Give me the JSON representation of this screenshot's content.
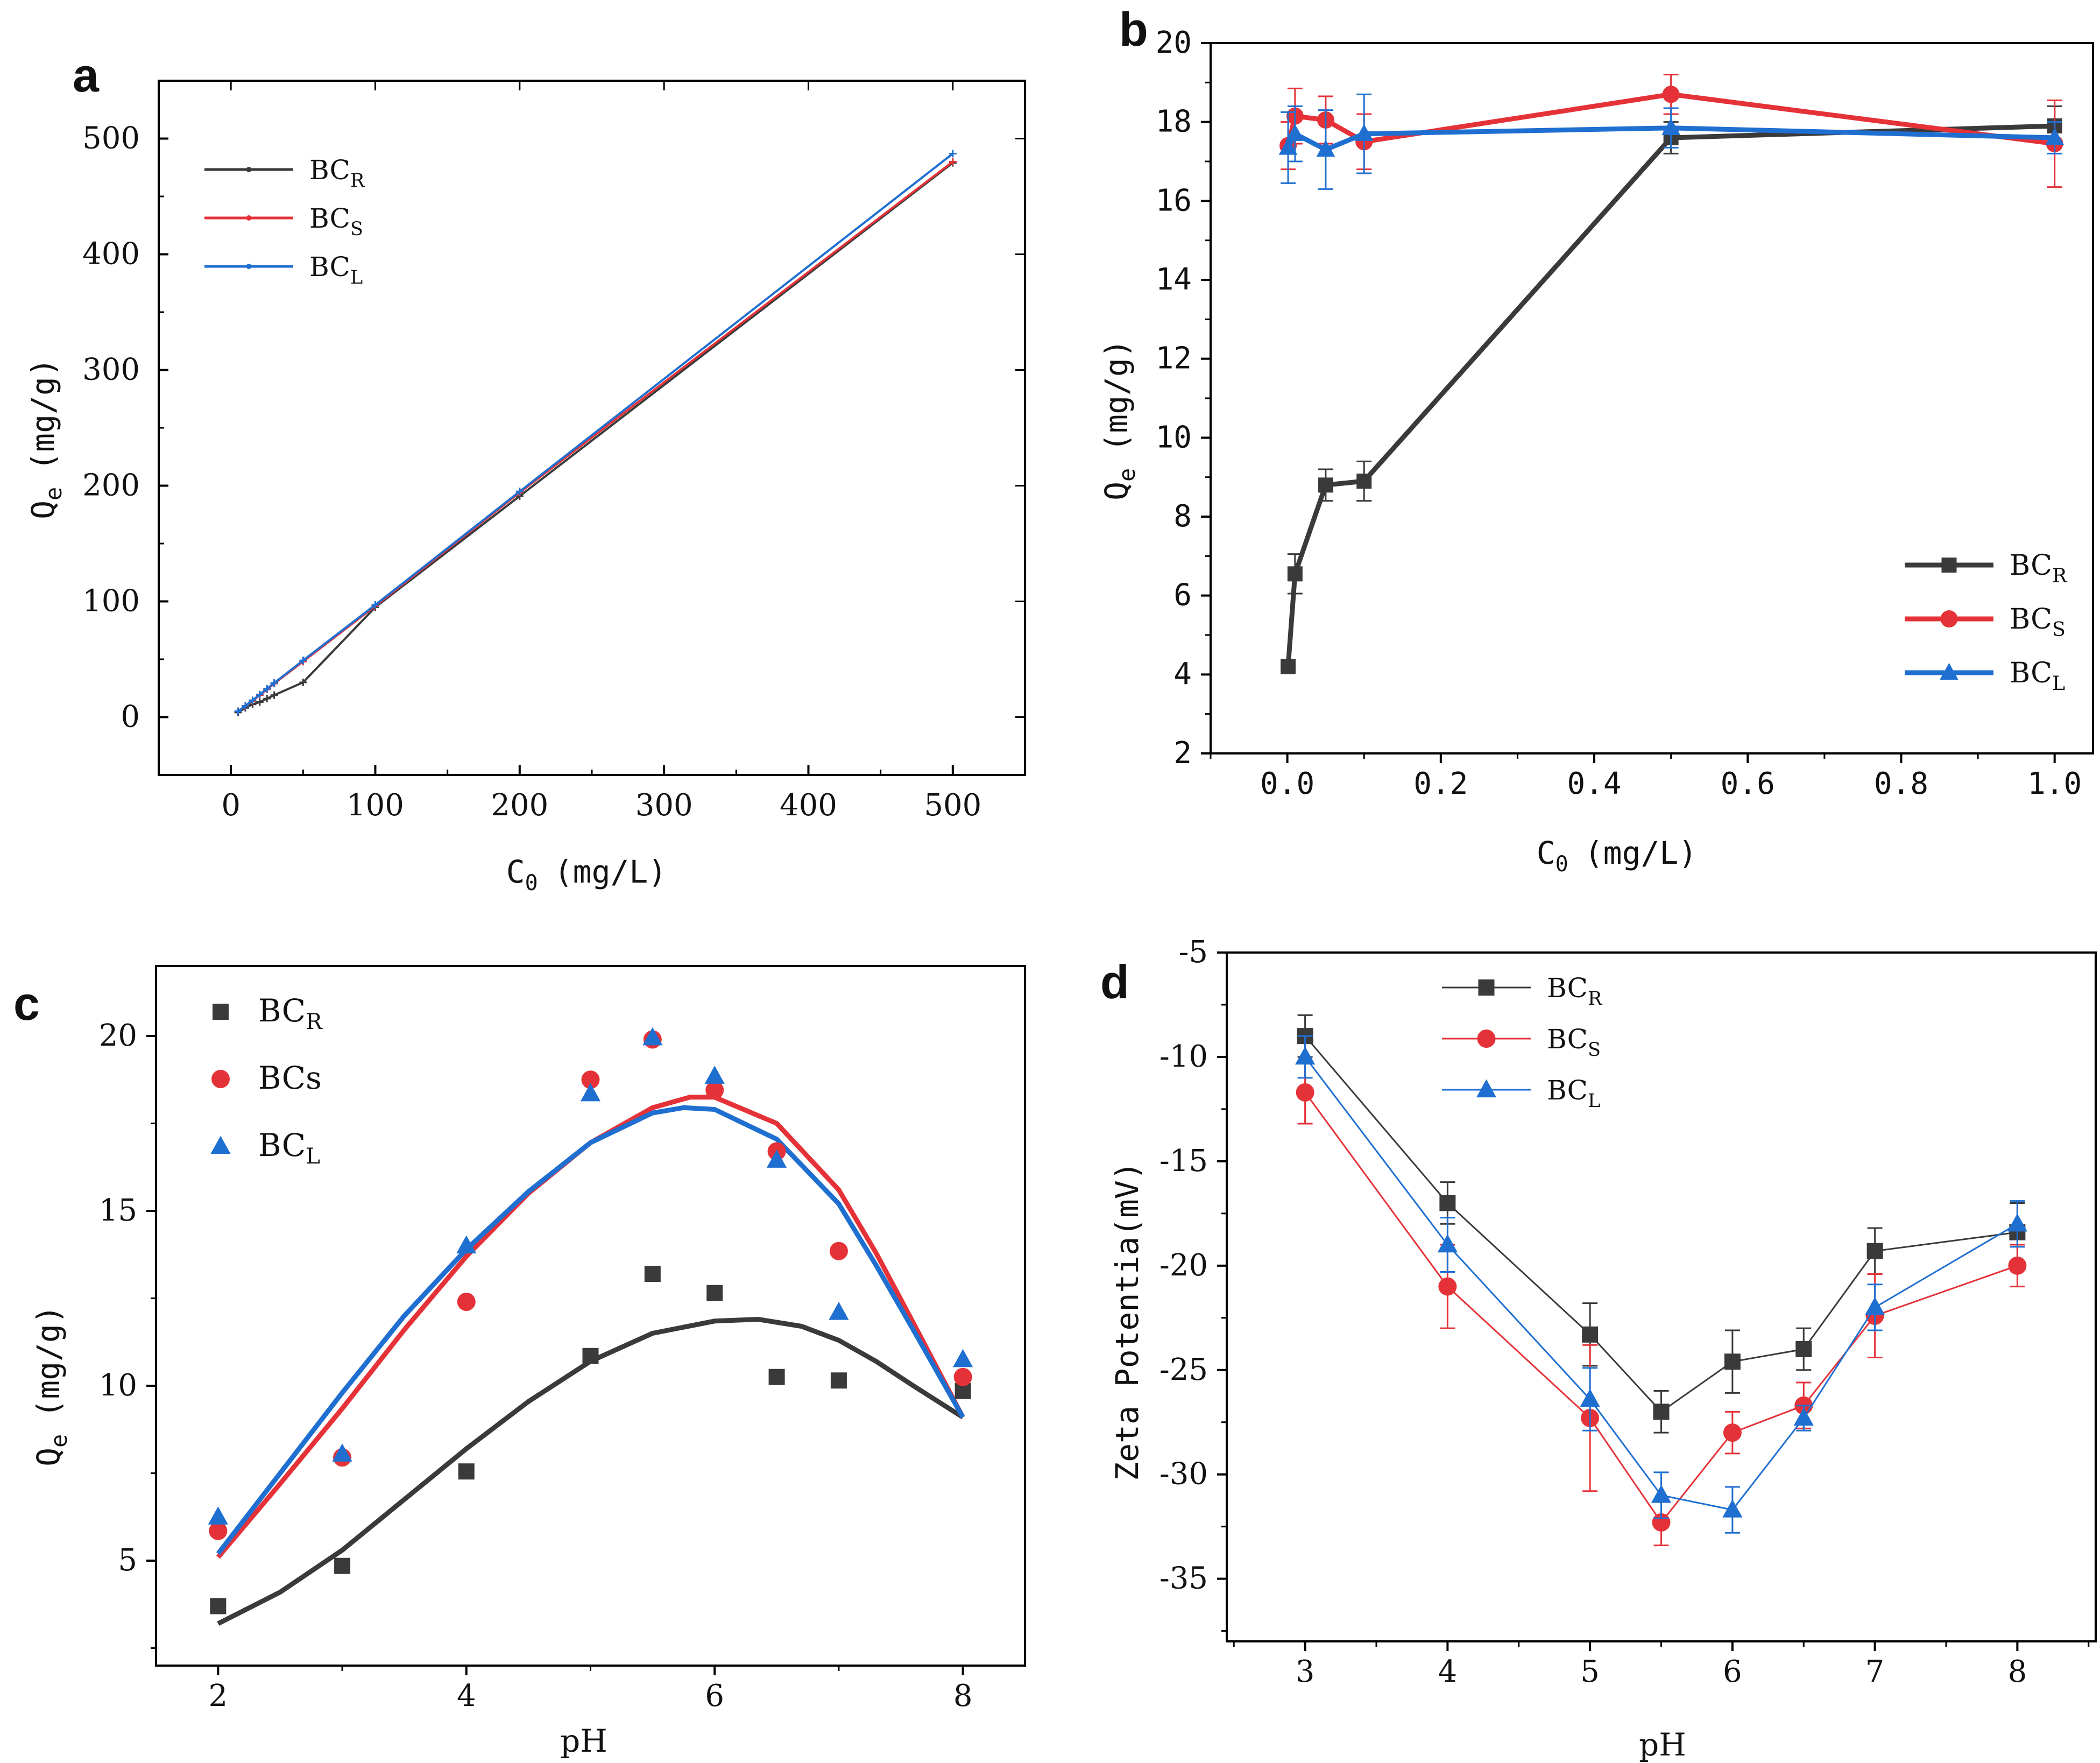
{
  "colors": {
    "R": "#3a3a3a",
    "S": "#e53238",
    "L": "#1f6fd1",
    "frame": "#000000"
  },
  "chart_data": [
    {
      "panel": "a",
      "type": "line",
      "xlabel": "C0 (mg/L)",
      "ylabel": "Qe (mg/g)",
      "xlim": [
        -50,
        550
      ],
      "ylim": [
        -50,
        550
      ],
      "xticks": [
        "0",
        "100",
        "200",
        "300",
        "400",
        "500"
      ],
      "xtick_values": [
        0,
        100,
        200,
        300,
        400,
        500
      ],
      "yticks": [
        "0",
        "100",
        "200",
        "300",
        "400",
        "500"
      ],
      "ytick_values": [
        0,
        100,
        200,
        300,
        400,
        500
      ],
      "legend_position": "top-left",
      "series": [
        {
          "name": "BCR",
          "sub": "R",
          "color_key": "R",
          "x": [
            5,
            10,
            15,
            20,
            25,
            30,
            50,
            100,
            200,
            500
          ],
          "y": [
            4,
            8,
            11,
            13,
            16,
            19,
            30,
            95,
            191,
            479
          ]
        },
        {
          "name": "BCS",
          "sub": "S",
          "color_key": "S",
          "x": [
            5,
            10,
            15,
            20,
            25,
            30,
            50,
            100,
            200,
            500
          ],
          "y": [
            5,
            9.5,
            14,
            19,
            24,
            29,
            48,
            96,
            194,
            480
          ]
        },
        {
          "name": "BCL",
          "sub": "L",
          "color_key": "L",
          "x": [
            5,
            10,
            15,
            20,
            25,
            30,
            50,
            100,
            200,
            500
          ],
          "y": [
            5,
            9.8,
            14.5,
            19.5,
            24.5,
            29.5,
            49,
            97,
            195,
            487
          ]
        }
      ]
    },
    {
      "panel": "b",
      "type": "line",
      "xlabel": "C0 (mg/L)",
      "ylabel": "Qe (mg/g)",
      "xlim": [
        -0.1,
        1.05
      ],
      "ylim": [
        2,
        20
      ],
      "xticks": [
        "0.0",
        "0.2",
        "0.4",
        "0.6",
        "0.8",
        "1.0"
      ],
      "xtick_values": [
        0,
        0.2,
        0.4,
        0.6,
        0.8,
        1.0
      ],
      "yticks": [
        "2",
        "4",
        "6",
        "8",
        "10",
        "12",
        "14",
        "16",
        "18",
        "20"
      ],
      "ytick_values": [
        2,
        4,
        6,
        8,
        10,
        12,
        14,
        16,
        18,
        20
      ],
      "legend_position": "bottom-right",
      "series": [
        {
          "name": "BCR",
          "sub": "R",
          "color_key": "R",
          "marker": "square",
          "x": [
            0.001,
            0.01,
            0.05,
            0.1,
            0.5,
            1.0
          ],
          "y": [
            4.2,
            6.55,
            8.8,
            8.9,
            17.6,
            17.9
          ],
          "err": [
            0,
            0.5,
            0.4,
            0.5,
            0.4,
            0.5
          ]
        },
        {
          "name": "BCS",
          "sub": "S",
          "color_key": "S",
          "marker": "circle",
          "x": [
            0.001,
            0.01,
            0.05,
            0.1,
            0.5,
            1.0
          ],
          "y": [
            17.4,
            18.15,
            18.05,
            17.5,
            18.7,
            17.45
          ],
          "err": [
            0.6,
            0.7,
            0.6,
            0.7,
            0.5,
            1.1
          ]
        },
        {
          "name": "BCL",
          "sub": "L",
          "color_key": "L",
          "marker": "triangle",
          "x": [
            0.001,
            0.01,
            0.05,
            0.1,
            0.5,
            1.0
          ],
          "y": [
            17.35,
            17.7,
            17.3,
            17.7,
            17.85,
            17.6
          ],
          "err": [
            0.9,
            0.7,
            1.0,
            1.0,
            0.5,
            0.4
          ]
        }
      ]
    },
    {
      "panel": "c",
      "type": "scatter",
      "xlabel": "pH",
      "ylabel": "Qe (mg/g)",
      "xlim": [
        1.5,
        8.5
      ],
      "ylim": [
        2,
        22
      ],
      "xticks": [
        "2",
        "4",
        "6",
        "8"
      ],
      "xtick_values": [
        2,
        4,
        6,
        8
      ],
      "yticks": [
        "5",
        "10",
        "15",
        "20"
      ],
      "ytick_values": [
        5,
        10,
        15,
        20
      ],
      "legend_position": "top-left",
      "series": [
        {
          "name": "BCR",
          "sub": "R",
          "color_key": "R",
          "marker": "square",
          "x": [
            2,
            3,
            4,
            5,
            5.5,
            6,
            6.5,
            7,
            8
          ],
          "y": [
            3.7,
            4.85,
            7.55,
            10.85,
            13.2,
            12.65,
            10.25,
            10.15,
            9.85
          ]
        },
        {
          "name": "BCs",
          "sub": "",
          "color_key": "S",
          "marker": "circle",
          "x": [
            2,
            3,
            4,
            5,
            5.5,
            6,
            6.5,
            7,
            8
          ],
          "y": [
            5.85,
            7.95,
            12.4,
            18.75,
            19.9,
            18.45,
            16.7,
            13.85,
            10.25
          ]
        },
        {
          "name": "BCL",
          "sub": "L",
          "color_key": "L",
          "marker": "triangle",
          "x": [
            2,
            3,
            4,
            5,
            5.5,
            6,
            6.5,
            7,
            8
          ],
          "y": [
            6.25,
            8.05,
            14.0,
            18.35,
            19.95,
            18.85,
            16.45,
            12.1,
            10.75
          ]
        }
      ],
      "fits": [
        {
          "color_key": "R",
          "x": [
            2,
            2.5,
            3,
            3.5,
            4,
            4.5,
            5,
            5.5,
            6,
            6.35,
            6.7,
            7,
            7.3,
            7.6,
            8
          ],
          "y": [
            3.2,
            4.1,
            5.3,
            6.75,
            8.2,
            9.55,
            10.7,
            11.5,
            11.85,
            11.9,
            11.7,
            11.3,
            10.7,
            10.0,
            9.1
          ]
        },
        {
          "color_key": "S",
          "x": [
            2,
            2.5,
            3,
            3.5,
            4,
            4.5,
            5,
            5.5,
            5.8,
            6,
            6.5,
            7,
            7.3,
            7.6,
            8
          ],
          "y": [
            5.1,
            7.2,
            9.35,
            11.6,
            13.7,
            15.5,
            16.95,
            17.95,
            18.25,
            18.25,
            17.5,
            15.6,
            13.8,
            11.8,
            9.1
          ]
        },
        {
          "color_key": "L",
          "x": [
            2,
            2.5,
            3,
            3.5,
            4,
            4.5,
            5,
            5.5,
            5.75,
            6,
            6.5,
            7,
            7.3,
            7.6,
            8
          ],
          "y": [
            5.2,
            7.5,
            9.8,
            12.0,
            13.9,
            15.55,
            16.95,
            17.8,
            17.95,
            17.9,
            17.05,
            15.2,
            13.45,
            11.6,
            9.1
          ]
        }
      ]
    },
    {
      "panel": "d",
      "type": "line",
      "xlabel": "pH",
      "ylabel": "Zeta Potentia (mV)",
      "xlim": [
        2.45,
        8.55
      ],
      "ylim": [
        -38,
        -5
      ],
      "xticks": [
        "3",
        "4",
        "5",
        "6",
        "7",
        "8"
      ],
      "xtick_values": [
        3,
        4,
        5,
        6,
        7,
        8
      ],
      "yticks": [
        "-35",
        "-30",
        "-25",
        "-20",
        "-15",
        "-10",
        "-5"
      ],
      "ytick_values": [
        -35,
        -30,
        -25,
        -20,
        -15,
        -10,
        -5
      ],
      "legend_position": "top-left",
      "series": [
        {
          "name": "BCR",
          "sub": "R",
          "color_key": "R",
          "marker": "square",
          "x": [
            3,
            4,
            5,
            5.5,
            6,
            6.5,
            7,
            8
          ],
          "y": [
            -9.0,
            -17.0,
            -23.3,
            -27.0,
            -24.6,
            -24.0,
            -19.3,
            -18.4
          ],
          "err": [
            1.0,
            1.0,
            1.5,
            1.0,
            1.5,
            1.0,
            1.1,
            1.4
          ]
        },
        {
          "name": "BCS",
          "sub": "S",
          "color_key": "S",
          "marker": "circle",
          "x": [
            3,
            4,
            5,
            5.5,
            6,
            6.5,
            7,
            8
          ],
          "y": [
            -11.7,
            -21.0,
            -27.3,
            -32.3,
            -28.0,
            -26.7,
            -22.4,
            -20.0
          ],
          "err": [
            1.5,
            2.0,
            3.5,
            1.1,
            1.0,
            1.1,
            2.0,
            1.0
          ]
        },
        {
          "name": "BCL",
          "sub": "L",
          "color_key": "L",
          "marker": "triangle",
          "x": [
            3,
            4,
            5,
            5.5,
            6,
            6.5,
            7,
            8
          ],
          "y": [
            -10.0,
            -19.0,
            -26.4,
            -31.0,
            -31.7,
            -27.3,
            -22.0,
            -18.0
          ],
          "err": [
            1.0,
            1.3,
            1.5,
            1.1,
            1.1,
            0.6,
            1.1,
            1.1
          ]
        }
      ]
    }
  ],
  "panel_labels": {
    "a": "a",
    "b": "b",
    "c": "c",
    "d": "d"
  },
  "axis_text": {
    "a": {
      "x_main": "C",
      "x_sub": "0",
      "x_unit": "(mg/L)",
      "y_main": "Q",
      "y_sub": "e",
      "y_unit": "(mg/g)"
    },
    "b": {
      "x_main": "C",
      "x_sub": "0",
      "x_unit": "(mg/L)",
      "y_main": "Q",
      "y_sub": "e",
      "y_unit": "(mg/g)"
    },
    "c": {
      "x_main": "pH",
      "y_main": "Q",
      "y_sub": "e",
      "y_unit": "(mg/g)"
    },
    "d": {
      "x_main": "pH",
      "y_main": "Zeta Potentia(mV)"
    }
  },
  "legend": {
    "a": [
      {
        "base": "BC",
        "sub": "R"
      },
      {
        "base": "BC",
        "sub": "S"
      },
      {
        "base": "BC",
        "sub": "L"
      }
    ],
    "b": [
      {
        "base": "BC",
        "sub": "R"
      },
      {
        "base": "BC",
        "sub": "S"
      },
      {
        "base": "BC",
        "sub": "L"
      }
    ],
    "c": [
      {
        "base": "BC",
        "sub": "R"
      },
      {
        "base": "BCs",
        "sub": ""
      },
      {
        "base": "BC",
        "sub": "L"
      }
    ],
    "d": [
      {
        "base": "BC",
        "sub": "R"
      },
      {
        "base": "BC",
        "sub": "S"
      },
      {
        "base": "BC",
        "sub": "L"
      }
    ]
  }
}
